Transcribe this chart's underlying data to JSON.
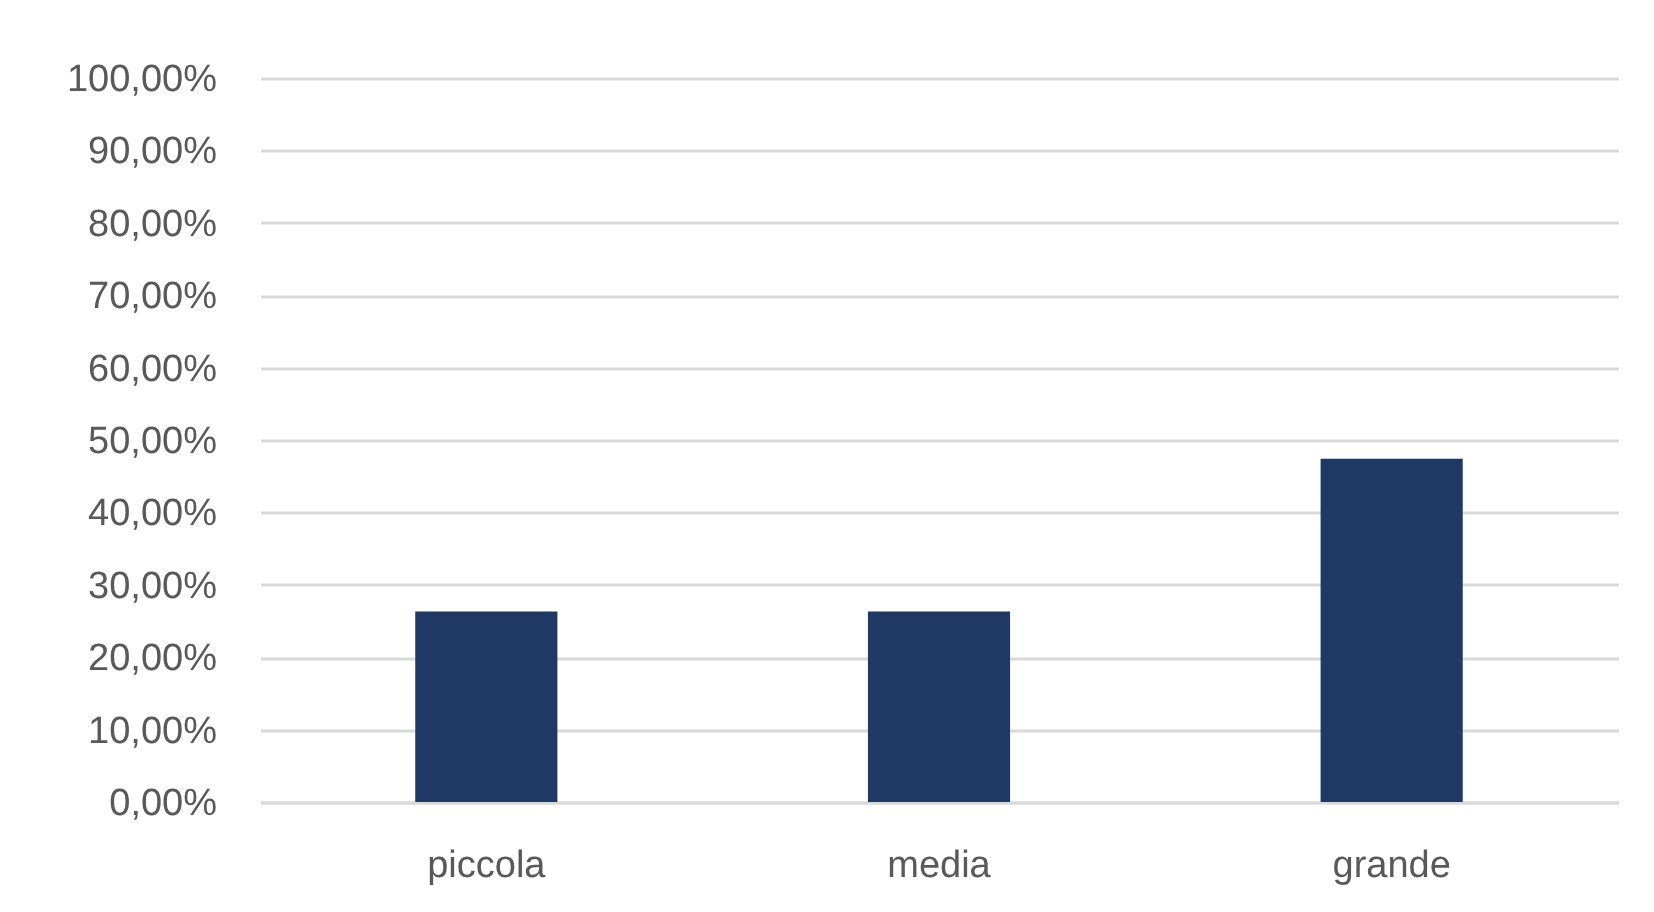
{
  "chart_data": {
    "type": "bar",
    "categories": [
      "piccola",
      "media",
      "grande"
    ],
    "values": [
      26.3,
      26.3,
      47.4
    ],
    "color": "#203864",
    "ylim": [
      0,
      100
    ],
    "yticks": [
      {
        "value": 0,
        "label": "0,00%"
      },
      {
        "value": 10,
        "label": "10,00%"
      },
      {
        "value": 20,
        "label": "20,00%"
      },
      {
        "value": 30,
        "label": "30,00%"
      },
      {
        "value": 40,
        "label": "40,00%"
      },
      {
        "value": 50,
        "label": "50,00%"
      },
      {
        "value": 60,
        "label": "60,00%"
      },
      {
        "value": 70,
        "label": "70,00%"
      },
      {
        "value": 80,
        "label": "80,00%"
      },
      {
        "value": 90,
        "label": "90,00%"
      },
      {
        "value": 100,
        "label": "100,00%"
      }
    ],
    "grid": "y"
  }
}
